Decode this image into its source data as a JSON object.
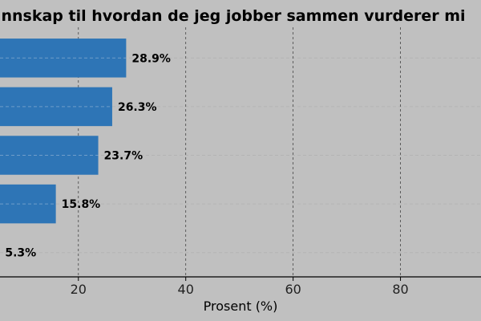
{
  "chart_data": {
    "type": "bar",
    "orientation": "horizontal",
    "title": "nnskap til hvordan de jeg jobber sammen vurderer mi",
    "xlabel": "Prosent (%)",
    "ylabel": "",
    "xlim": [
      5.4,
      95
    ],
    "xticks": [
      20,
      40,
      60,
      80
    ],
    "xtick_labels": [
      "20",
      "40",
      "60",
      "80"
    ],
    "values": [
      28.9,
      26.3,
      23.7,
      15.8,
      5.3
    ],
    "value_labels": [
      "28.9%",
      "26.3%",
      "23.7%",
      "15.8%",
      "5.3%"
    ],
    "bar_color": "#2e75b6",
    "grid": true,
    "grid_style": "dashed vertical",
    "background": "#c0c0c0"
  }
}
